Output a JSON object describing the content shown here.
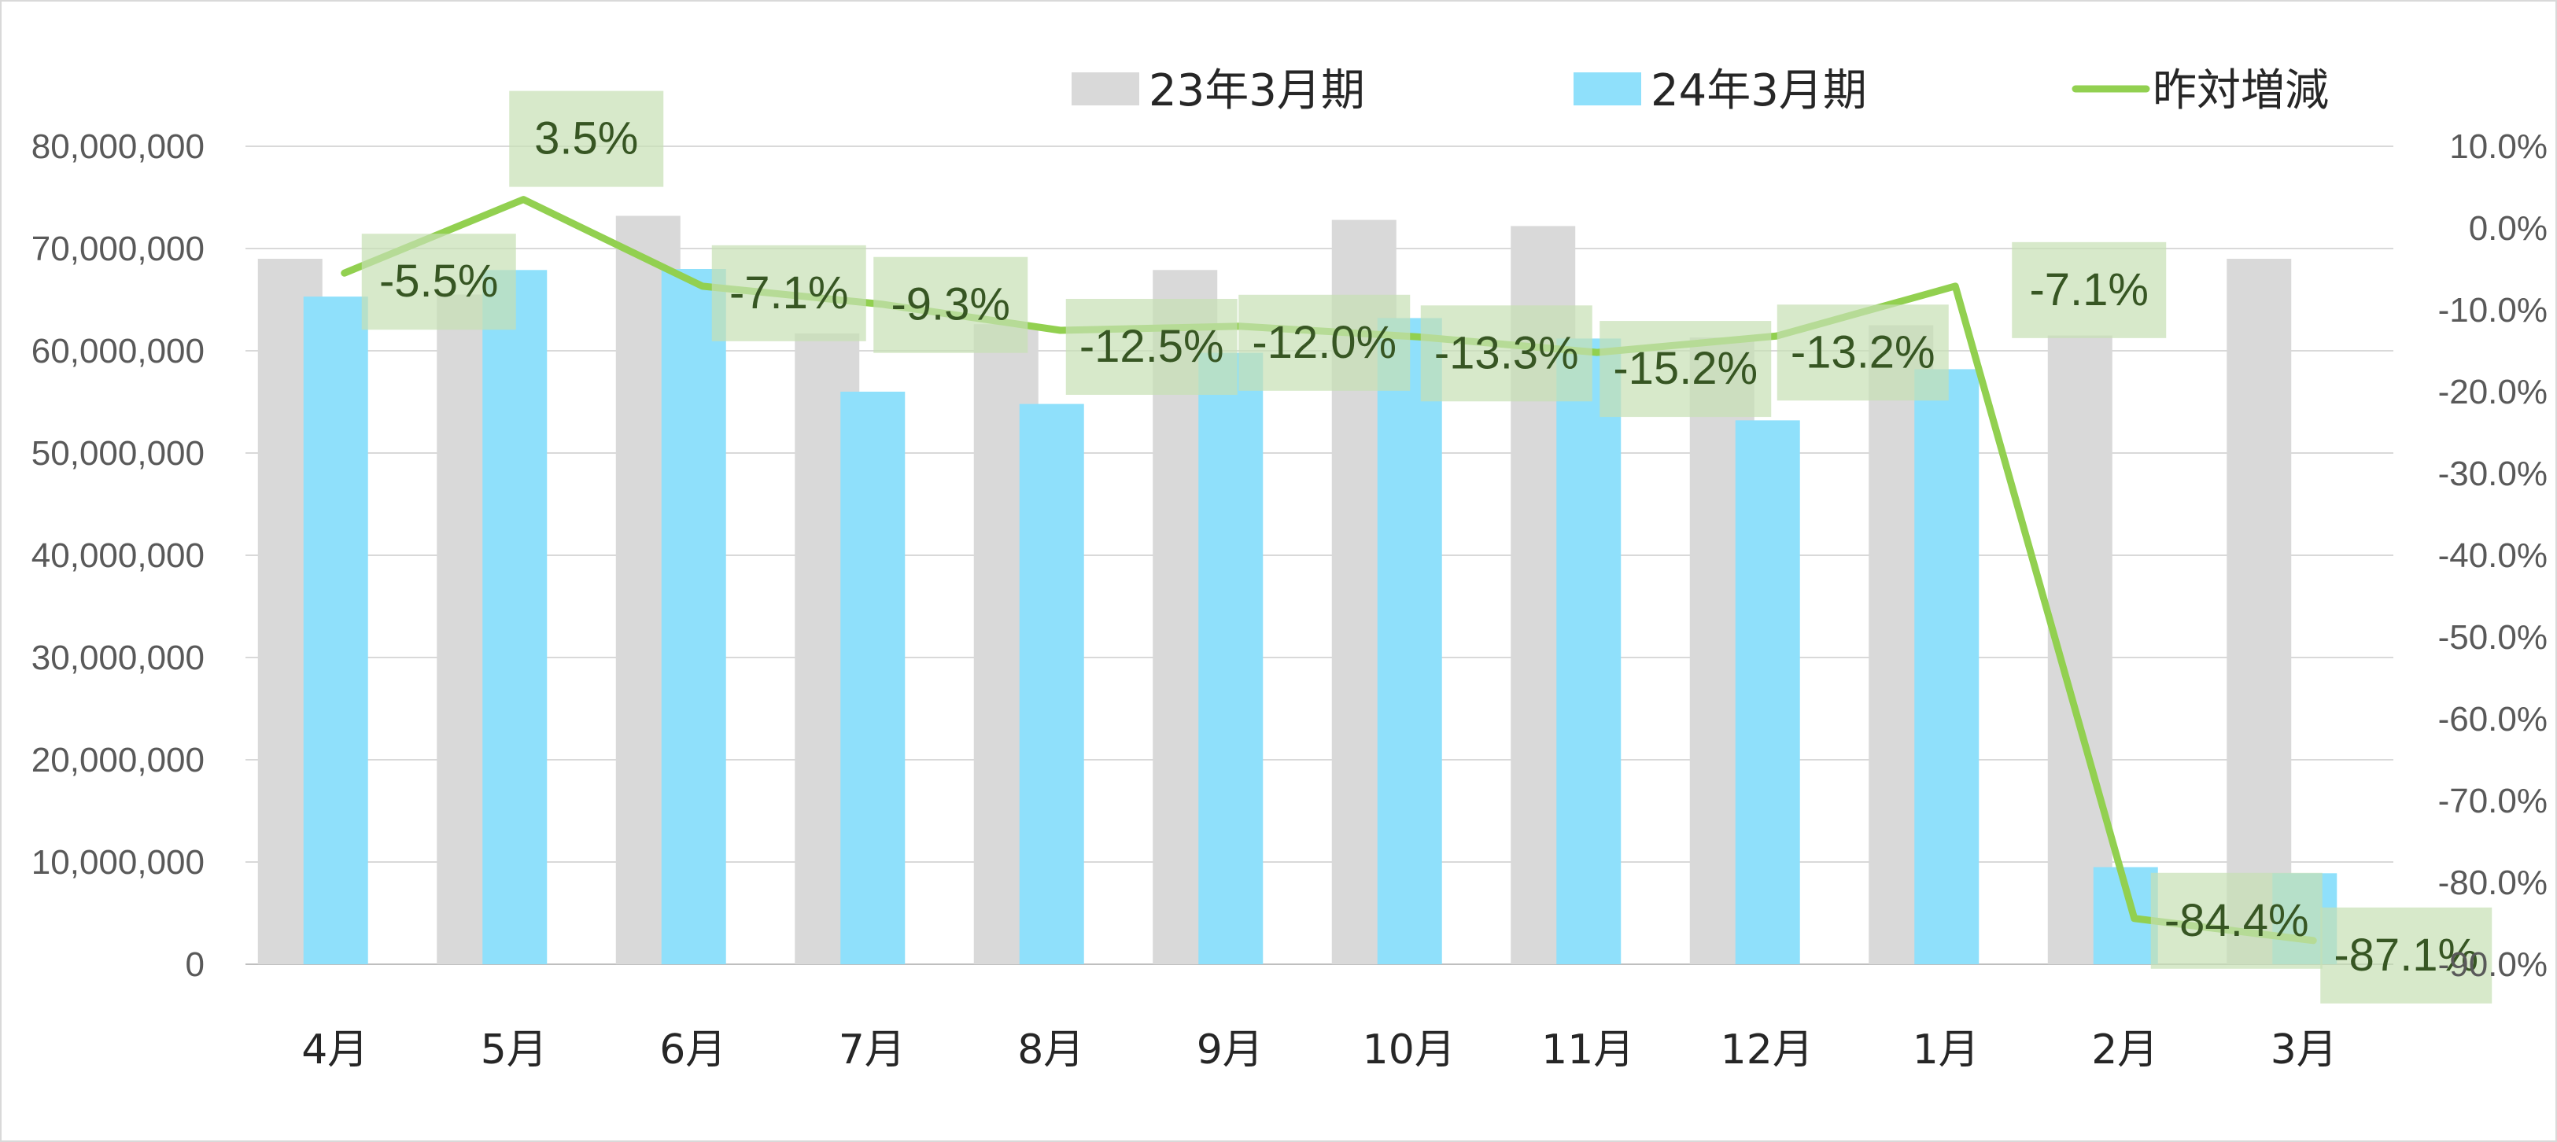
{
  "chart_data": {
    "type": "bar",
    "categories": [
      "4月",
      "5月",
      "6月",
      "7月",
      "8月",
      "9月",
      "10月",
      "11月",
      "12月",
      "1月",
      "2月",
      "3月"
    ],
    "series": [
      {
        "name": "23年3月期",
        "type": "bar",
        "axis": "left",
        "color": "#d9d9d9",
        "values": [
          69000000,
          65500000,
          73200000,
          61700000,
          62600000,
          67900000,
          72800000,
          72200000,
          61300000,
          62500000,
          61500000,
          69000000
        ]
      },
      {
        "name": "24年3月期",
        "type": "bar",
        "axis": "left",
        "color": "#8fe0fb",
        "values": [
          65300000,
          67900000,
          68000000,
          56000000,
          54800000,
          59800000,
          63200000,
          61200000,
          53200000,
          58200000,
          9500000,
          8900000
        ]
      },
      {
        "name": "昨対増減",
        "type": "line",
        "axis": "right",
        "color": "#92d050",
        "values": [
          -5.5,
          3.5,
          -7.1,
          -9.3,
          -12.5,
          -12.0,
          -13.3,
          -15.2,
          -13.2,
          -7.1,
          -84.4,
          -87.1
        ],
        "labels": [
          "-5.5%",
          "3.5%",
          "-7.1%",
          "-9.3%",
          "-12.5%",
          "-12.0%",
          "-13.3%",
          "-15.2%",
          "-13.2%",
          "-7.1%",
          "-84.4%",
          "-87.1%"
        ]
      }
    ],
    "y_left": {
      "ylim": [
        0,
        80000000
      ],
      "ticks": [
        "80,000,000",
        "70,000,000",
        "60,000,000",
        "50,000,000",
        "40,000,000",
        "30,000,000",
        "20,000,000",
        "10,000,000",
        "0"
      ]
    },
    "y_right": {
      "ylim": [
        -90,
        10
      ],
      "ticks": [
        "10.0%",
        "0.0%",
        "-10.0%",
        "-20.0%",
        "-30.0%",
        "-40.0%",
        "-50.0%",
        "-60.0%",
        "-70.0%",
        "-80.0%",
        "-90.0%"
      ]
    },
    "title": "",
    "xlabel": "",
    "ylabel": "",
    "grid": true,
    "legend": "top-right",
    "label_box_color": "#c6e0b4"
  }
}
